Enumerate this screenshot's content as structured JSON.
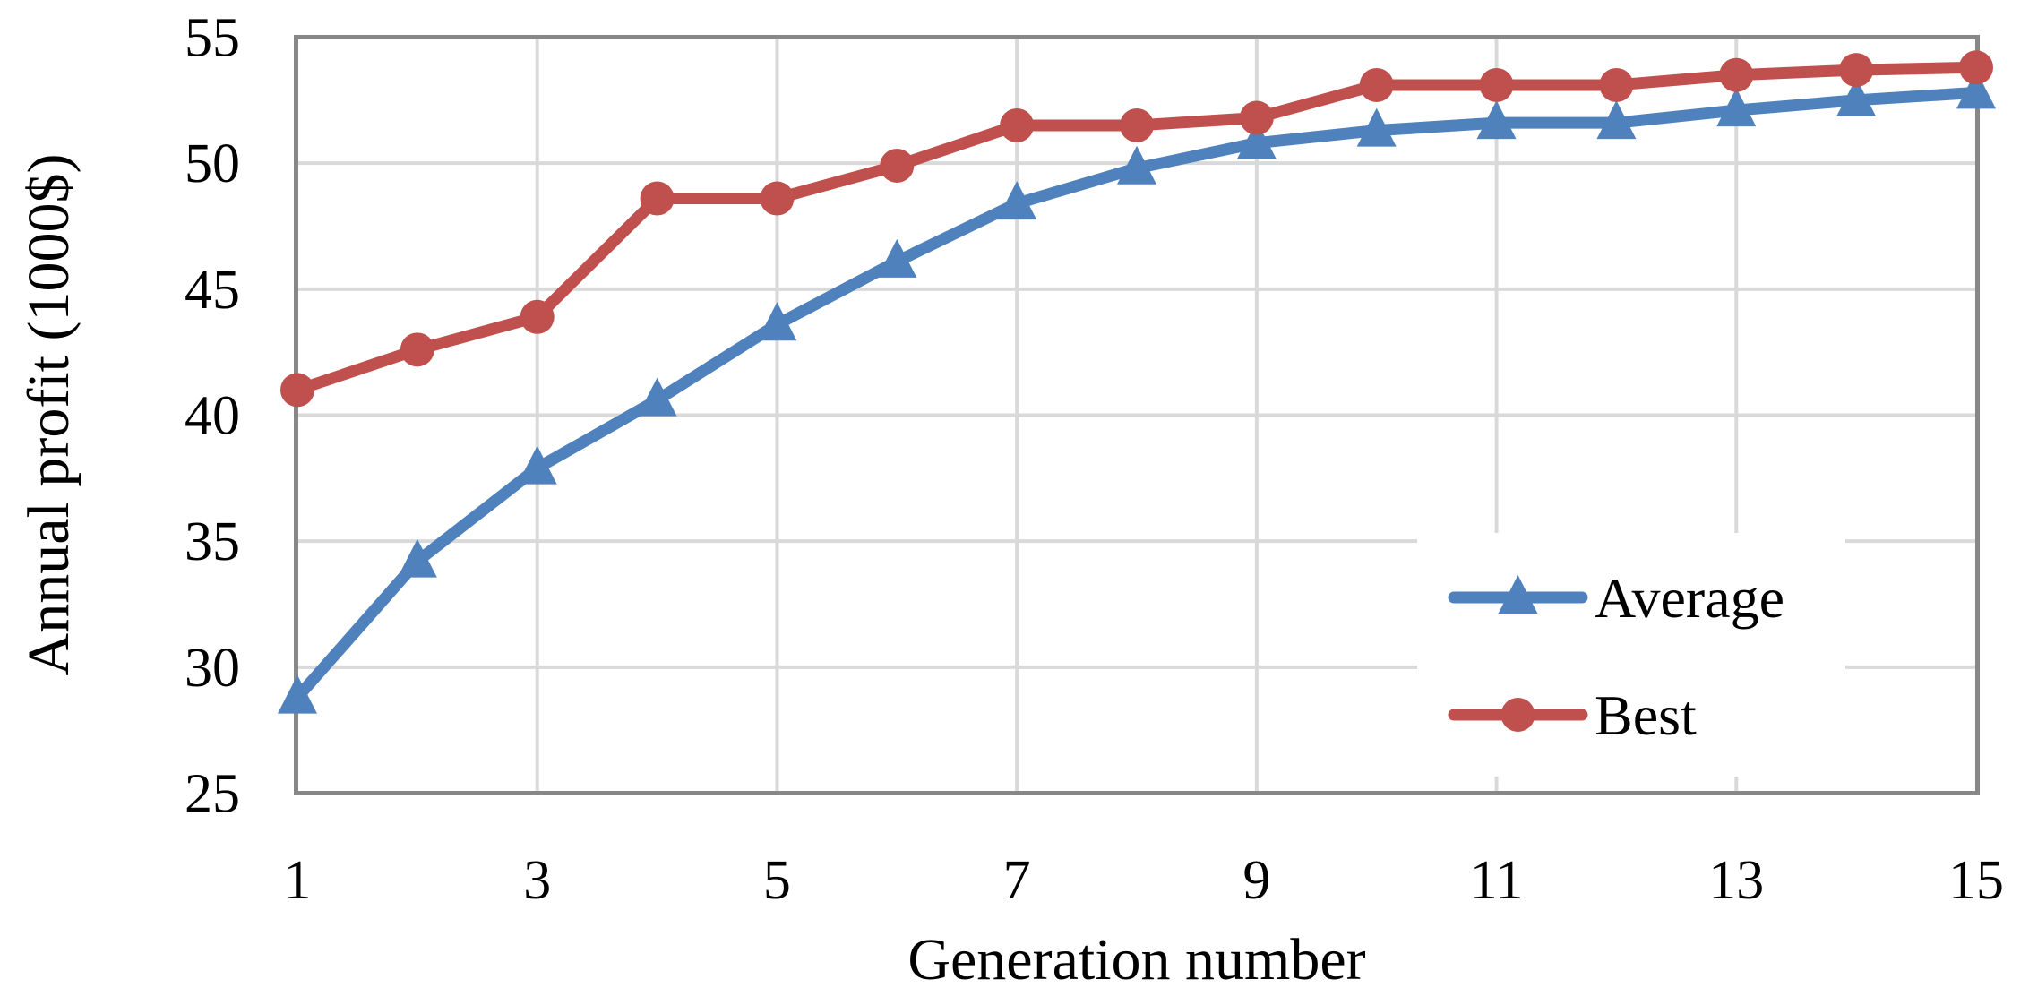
{
  "chart_data": {
    "type": "line",
    "title": "",
    "xlabel": "Generation number",
    "ylabel": "Annual profit (1000$)",
    "x": [
      1,
      2,
      3,
      4,
      5,
      6,
      7,
      8,
      9,
      10,
      11,
      12,
      13,
      14,
      15
    ],
    "series": [
      {
        "name": "Average",
        "color": "#4F81BD",
        "marker": "triangle",
        "values": [
          28.8,
          34.2,
          37.9,
          40.6,
          43.6,
          46.1,
          48.4,
          49.8,
          50.8,
          51.3,
          51.6,
          51.6,
          52.1,
          52.5,
          52.8
        ]
      },
      {
        "name": "Best",
        "color": "#C0504D",
        "marker": "circle",
        "values": [
          41.0,
          42.6,
          43.9,
          48.6,
          48.6,
          49.9,
          51.5,
          51.5,
          51.8,
          53.1,
          53.1,
          53.1,
          53.5,
          53.7,
          53.8
        ]
      }
    ],
    "xlim": [
      1,
      15
    ],
    "ylim": [
      25,
      55
    ],
    "xticks": [
      1,
      3,
      5,
      7,
      9,
      11,
      13,
      15
    ],
    "yticks": [
      25,
      30,
      35,
      40,
      45,
      50,
      55
    ],
    "grid": true,
    "legend_position": "inside lower right",
    "colors": {
      "grid": "#D9D9D9",
      "axis_border": "#878787",
      "text": "#000000",
      "background": "#FFFFFF",
      "legend_background": "#FFFFFF"
    }
  }
}
